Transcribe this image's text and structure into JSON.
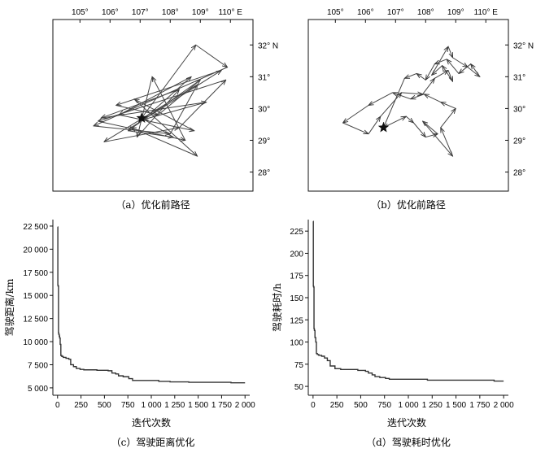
{
  "chart_data": [
    {
      "id": "a",
      "type": "map-route",
      "caption": "（a）优化前路径",
      "x_ticks": [
        "105°",
        "106°",
        "107°",
        "108°",
        "109°",
        "110° E"
      ],
      "y_ticks": [
        "32° N",
        "31°",
        "30°",
        "29°",
        "28°"
      ],
      "xlim": [
        104.1,
        110.75
      ],
      "ylim": [
        27.4,
        32.8
      ],
      "x_tick_values": [
        105,
        106,
        107,
        108,
        109,
        110
      ],
      "y_tick_values": [
        32,
        31,
        30,
        29,
        28
      ],
      "start": [
        107.05,
        29.7
      ],
      "route": [
        [
          107.05,
          29.7
        ],
        [
          108.85,
          32.0
        ],
        [
          109.9,
          31.3
        ],
        [
          105.45,
          29.45
        ],
        [
          108.0,
          29.2
        ],
        [
          108.9,
          30.75
        ],
        [
          105.8,
          28.95
        ],
        [
          108.3,
          29.4
        ],
        [
          109.85,
          30.9
        ],
        [
          105.6,
          29.6
        ],
        [
          108.5,
          29.0
        ],
        [
          107.4,
          31.0
        ],
        [
          106.9,
          29.1
        ],
        [
          108.3,
          30.6
        ],
        [
          105.7,
          29.7
        ],
        [
          109.2,
          30.2
        ],
        [
          107.1,
          29.65
        ],
        [
          108.7,
          31.0
        ],
        [
          106.3,
          29.8
        ],
        [
          108.8,
          29.3
        ],
        [
          106.8,
          30.3
        ],
        [
          108.9,
          28.5
        ],
        [
          106.7,
          29.4
        ],
        [
          109.7,
          31.2
        ],
        [
          106.2,
          30.1
        ],
        [
          107.6,
          29.8
        ],
        [
          109.0,
          30.9
        ],
        [
          106.6,
          29.3
        ],
        [
          108.1,
          29.1
        ],
        [
          107.05,
          29.7
        ]
      ]
    },
    {
      "id": "b",
      "type": "map-route",
      "caption": "（b）优化前路径",
      "x_ticks": [
        "105°",
        "106°",
        "107°",
        "108°",
        "109°",
        "110° E"
      ],
      "y_ticks": [
        "32° N",
        "31°",
        "30°",
        "29°",
        "28°"
      ],
      "xlim": [
        104.1,
        110.75
      ],
      "ylim": [
        27.4,
        32.8
      ],
      "x_tick_values": [
        105,
        106,
        107,
        108,
        109,
        110
      ],
      "y_tick_values": [
        32,
        31,
        30,
        29,
        28
      ],
      "start": [
        106.6,
        29.4
      ],
      "route": [
        [
          106.6,
          29.4
        ],
        [
          107.35,
          29.75
        ],
        [
          107.6,
          29.55
        ],
        [
          108.0,
          29.1
        ],
        [
          108.4,
          29.2
        ],
        [
          107.9,
          29.6
        ],
        [
          108.9,
          28.5
        ],
        [
          108.5,
          29.4
        ],
        [
          109.0,
          30.0
        ],
        [
          108.5,
          30.2
        ],
        [
          107.95,
          30.45
        ],
        [
          107.5,
          30.3
        ],
        [
          106.9,
          30.5
        ],
        [
          106.1,
          30.1
        ],
        [
          105.25,
          29.55
        ],
        [
          106.1,
          29.2
        ],
        [
          106.5,
          29.75
        ],
        [
          107.2,
          30.5
        ],
        [
          107.9,
          30.45
        ],
        [
          108.3,
          30.95
        ],
        [
          108.75,
          31.2
        ],
        [
          108.9,
          30.85
        ],
        [
          108.55,
          31.35
        ],
        [
          108.2,
          31.05
        ],
        [
          108.75,
          31.95
        ],
        [
          108.9,
          31.6
        ],
        [
          109.4,
          31.3
        ],
        [
          109.8,
          31.0
        ],
        [
          109.5,
          31.4
        ],
        [
          109.1,
          31.1
        ],
        [
          108.7,
          31.55
        ],
        [
          108.3,
          31.4
        ],
        [
          108.0,
          30.9
        ],
        [
          107.7,
          31.1
        ],
        [
          107.3,
          30.95
        ],
        [
          106.6,
          29.4
        ]
      ]
    },
    {
      "id": "c",
      "type": "line",
      "caption": "（c）驾驶距离优化",
      "xlabel": "迭代次数",
      "ylabel": "驾驶距离/km",
      "xlim": [
        -50,
        2050
      ],
      "ylim": [
        4200,
        23200
      ],
      "x_ticks": [
        0,
        250,
        500,
        750,
        1000,
        1250,
        1500,
        1750,
        2000
      ],
      "x_tick_labels": [
        "0",
        "250",
        "500",
        "750",
        "1 000",
        "1 250",
        "1 500",
        "1 750",
        "2 000"
      ],
      "y_ticks": [
        5000,
        7500,
        10000,
        12500,
        15000,
        17500,
        20000,
        22500
      ],
      "y_tick_labels": [
        "5 000",
        "7 500",
        "10 000",
        "12 500",
        "15 000",
        "17 500",
        "20 000",
        "22 500"
      ],
      "x": [
        0,
        3,
        6,
        10,
        12,
        18,
        22,
        28,
        35,
        45,
        60,
        90,
        120,
        140,
        170,
        200,
        240,
        280,
        350,
        420,
        450,
        540,
        580,
        620,
        650,
        700,
        760,
        800,
        850,
        1000,
        1080,
        1200,
        1300,
        1400,
        1500,
        1600,
        1700,
        1800,
        1850,
        1900,
        2000
      ],
      "y": [
        22400,
        16100,
        16000,
        11000,
        10800,
        10600,
        10400,
        9700,
        8500,
        8400,
        8300,
        8200,
        8100,
        7500,
        7300,
        7100,
        7000,
        6950,
        6950,
        6900,
        6900,
        6850,
        6600,
        6500,
        6300,
        6200,
        6000,
        5800,
        5800,
        5800,
        5700,
        5650,
        5650,
        5600,
        5600,
        5600,
        5600,
        5600,
        5550,
        5550,
        5550
      ]
    },
    {
      "id": "d",
      "type": "line",
      "caption": "（d）驾驶耗时优化",
      "xlabel": "迭代次数",
      "ylabel": "驾驶耗时/h",
      "xlim": [
        -50,
        2050
      ],
      "ylim": [
        40,
        238
      ],
      "x_ticks": [
        0,
        250,
        500,
        750,
        1000,
        1250,
        1500,
        1750,
        2000
      ],
      "x_tick_labels": [
        "0",
        "250",
        "500",
        "750",
        "1 000",
        "1 250",
        "1 500",
        "1 750",
        "2 000"
      ],
      "y_ticks": [
        50,
        75,
        100,
        125,
        150,
        175,
        200,
        225
      ],
      "y_tick_labels": [
        "50",
        "75",
        "100",
        "125",
        "150",
        "175",
        "200",
        "225"
      ],
      "x": [
        0,
        3,
        6,
        10,
        14,
        20,
        28,
        35,
        45,
        60,
        90,
        120,
        150,
        180,
        230,
        290,
        350,
        450,
        470,
        550,
        580,
        620,
        650,
        700,
        760,
        800,
        900,
        1000,
        1100,
        1200,
        1300,
        1400,
        1500,
        1600,
        1700,
        1800,
        1900,
        2000
      ],
      "y": [
        236,
        163,
        162,
        115,
        113,
        105,
        100,
        87,
        86,
        85,
        84,
        82,
        79,
        73,
        70,
        69,
        69,
        69,
        68,
        67,
        65,
        63,
        61,
        60,
        59,
        58,
        58,
        58,
        58,
        57,
        57,
        57,
        57,
        57,
        57,
        57,
        56,
        56
      ]
    }
  ]
}
